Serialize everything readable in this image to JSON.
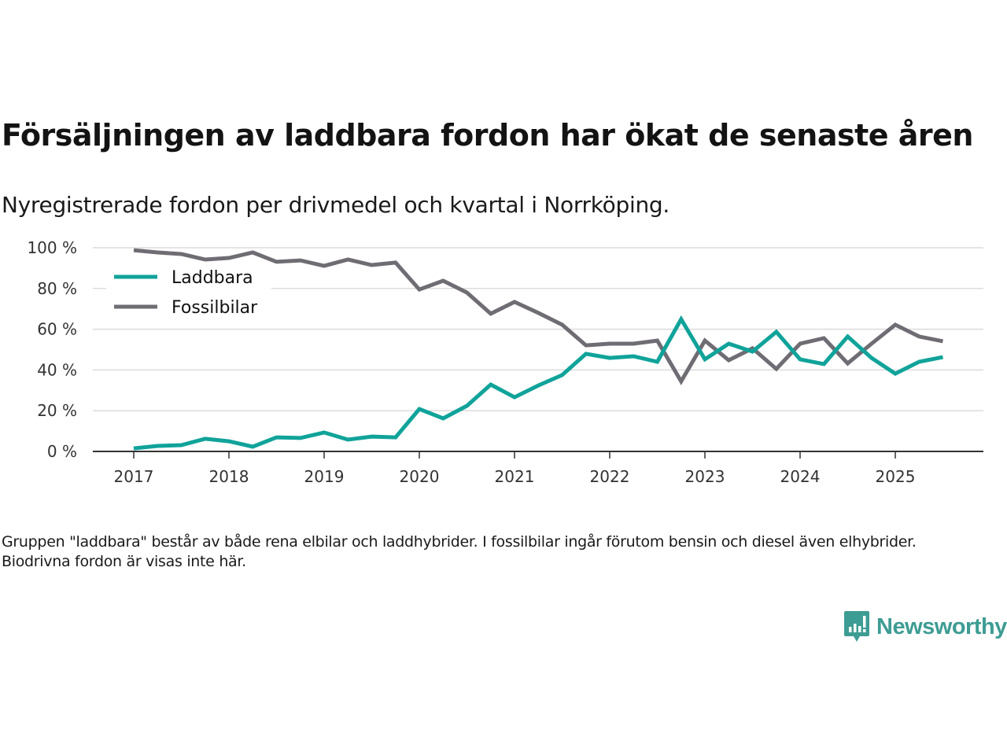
{
  "header": {
    "title": "Försäljningen av laddbara fordon har ökat de senaste åren",
    "subtitle": "Nyregistrerade fordon per drivmedel och kvartal i Norrköping."
  },
  "footer": {
    "note": "Gruppen \"laddbara\" består av både rena elbilar och laddhybrider. I fossilbilar ingår förutom bensin och diesel även elhybrider. Biodrivna fordon är visas inte här.",
    "brand": "Newsworthy",
    "brand_color": "#3d9c93"
  },
  "chart_data": {
    "type": "line",
    "title": "Försäljningen av laddbara fordon har ökat de senaste åren",
    "subtitle": "Nyregistrerade fordon per drivmedel och kvartal i Norrköping.",
    "xlabel": "",
    "ylabel": "",
    "x_unit": "quarter",
    "x_start": "2017 Q1",
    "x_tick_labels": [
      "2017",
      "2018",
      "2019",
      "2020",
      "2021",
      "2022",
      "2023",
      "2024",
      "2025"
    ],
    "y_tick_labels": [
      "0 %",
      "20 %",
      "40 %",
      "60 %",
      "80 %",
      "100 %"
    ],
    "y_ticks": [
      0,
      20,
      40,
      60,
      80,
      100
    ],
    "ylim": [
      0,
      100
    ],
    "xlim": [
      2017.0,
      2026.0
    ],
    "grid": "horizontal",
    "legend_position": "top-left",
    "x": [
      2017.0,
      2017.25,
      2017.5,
      2017.75,
      2018.0,
      2018.25,
      2018.5,
      2018.75,
      2019.0,
      2019.25,
      2019.5,
      2019.75,
      2020.0,
      2020.25,
      2020.5,
      2020.75,
      2021.0,
      2021.25,
      2021.5,
      2021.75,
      2022.0,
      2022.25,
      2022.5,
      2022.75,
      2023.0,
      2023.25,
      2023.5,
      2023.75,
      2024.0,
      2024.25,
      2024.5,
      2024.75,
      2025.0,
      2025.25,
      2025.5
    ],
    "series": [
      {
        "name": "Laddbara",
        "color": "#10a39a",
        "values": [
          1.5,
          2.7,
          3.1,
          6.2,
          5.0,
          2.3,
          6.9,
          6.6,
          9.3,
          5.8,
          7.3,
          6.9,
          20.8,
          16.2,
          22.4,
          32.8,
          26.6,
          32.4,
          37.5,
          47.9,
          45.9,
          46.7,
          44.0,
          64.9,
          45.2,
          52.9,
          49.0,
          58.7,
          45.2,
          42.9,
          56.4,
          45.9,
          38.2,
          44.0,
          46.3
        ]
      },
      {
        "name": "Fossilbilar",
        "color": "#6f6d73",
        "values": [
          98.8,
          97.7,
          96.9,
          94.2,
          95.0,
          97.7,
          93.1,
          93.8,
          91.1,
          94.2,
          91.5,
          92.7,
          79.5,
          83.8,
          78.0,
          67.6,
          73.4,
          68.0,
          62.2,
          52.1,
          52.9,
          52.9,
          54.4,
          34.4,
          54.4,
          44.8,
          50.6,
          40.5,
          52.9,
          55.6,
          43.2,
          52.9,
          62.2,
          56.4,
          54.1
        ]
      }
    ]
  }
}
